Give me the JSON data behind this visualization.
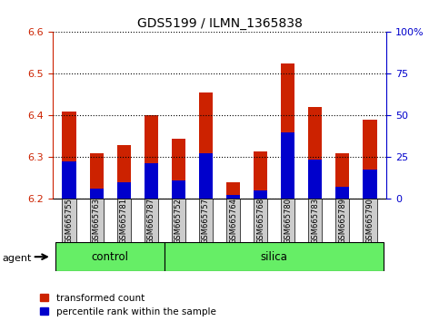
{
  "title": "GDS5199 / ILMN_1365838",
  "samples": [
    "GSM665755",
    "GSM665763",
    "GSM665781",
    "GSM665787",
    "GSM665752",
    "GSM665757",
    "GSM665764",
    "GSM665768",
    "GSM665780",
    "GSM665783",
    "GSM665789",
    "GSM665790"
  ],
  "groups": [
    "control",
    "control",
    "control",
    "control",
    "silica",
    "silica",
    "silica",
    "silica",
    "silica",
    "silica",
    "silica",
    "silica"
  ],
  "red_values": [
    6.41,
    6.31,
    6.33,
    6.4,
    6.345,
    6.455,
    6.24,
    6.315,
    6.525,
    6.42,
    6.31,
    6.39
  ],
  "blue_values": [
    6.29,
    6.225,
    6.24,
    6.285,
    6.245,
    6.31,
    6.21,
    6.22,
    6.36,
    6.295,
    6.23,
    6.27
  ],
  "ymin": 6.2,
  "ymax": 6.6,
  "yticks_left": [
    6.2,
    6.3,
    6.4,
    6.5,
    6.6
  ],
  "yticks_right_vals": [
    0,
    25,
    50,
    75,
    100
  ],
  "yticks_right_labels": [
    "0",
    "25",
    "50",
    "75",
    "100%"
  ],
  "bar_color_red": "#cc2200",
  "bar_color_blue": "#0000cc",
  "background_color": "#ffffff",
  "group_bg_color": "#66ee66",
  "left_axis_color": "#cc2200",
  "right_axis_color": "#0000cc",
  "title_color": "#000000",
  "legend_red_label": "transformed count",
  "legend_blue_label": "percentile rank within the sample",
  "agent_label": "agent",
  "control_label": "control",
  "silica_label": "silica",
  "bar_width": 0.5,
  "n_control": 4,
  "n_silica": 8
}
